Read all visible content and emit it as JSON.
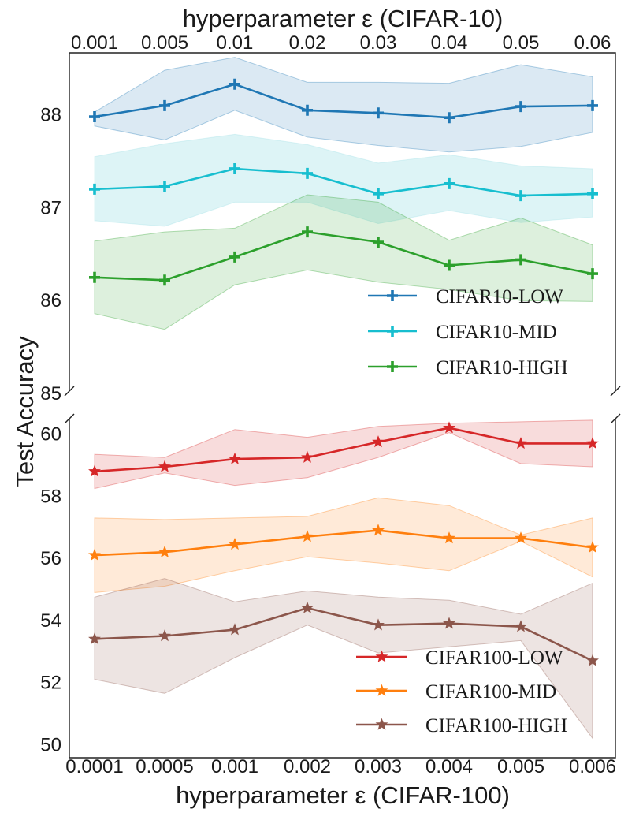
{
  "chart_data": {
    "type": "line",
    "ylabel": "Test Accuracy",
    "panels": [
      {
        "id": "cifar10",
        "title": "hyperparameter ε (CIFAR-10)",
        "x_tick_labels": [
          "0.001",
          "0.005",
          "0.01",
          "0.02",
          "0.03",
          "0.04",
          "0.05",
          "0.06"
        ],
        "ylim": [
          85,
          88.6
        ],
        "y_ticks": [
          85,
          86,
          87,
          88
        ],
        "marker": "plus",
        "legend_position": "lower-right",
        "series": [
          {
            "name": "CIFAR10-LOW",
            "color": "#1f77b4",
            "values": [
              87.98,
              88.1,
              88.33,
              88.05,
              88.02,
              87.97,
              88.09,
              88.1
            ],
            "upper": [
              88.03,
              88.48,
              88.62,
              88.35,
              88.35,
              88.34,
              88.54,
              88.41
            ],
            "lower": [
              87.88,
              87.73,
              88.05,
              87.76,
              87.67,
              87.6,
              87.66,
              87.81
            ]
          },
          {
            "name": "CIFAR10-MID",
            "color": "#17becf",
            "values": [
              87.2,
              87.23,
              87.42,
              87.37,
              87.15,
              87.26,
              87.13,
              87.15
            ],
            "upper": [
              87.55,
              87.69,
              87.79,
              87.68,
              87.48,
              87.57,
              87.45,
              87.42
            ],
            "lower": [
              86.86,
              86.8,
              87.06,
              87.06,
              86.83,
              86.97,
              86.84,
              86.9
            ],
            "band_color": "#9edfe6"
          },
          {
            "name": "CIFAR10-HIGH",
            "color": "#2ca02c",
            "values": [
              86.25,
              86.22,
              86.47,
              86.74,
              86.63,
              86.38,
              86.44,
              86.29
            ],
            "upper": [
              86.64,
              86.74,
              86.78,
              87.14,
              87.06,
              86.65,
              86.89,
              86.6
            ],
            "lower": [
              85.86,
              85.69,
              86.17,
              86.33,
              86.2,
              86.12,
              86.0,
              85.99
            ]
          }
        ]
      },
      {
        "id": "cifar100",
        "xlabel": "hyperparameter ε (CIFAR-100)",
        "x_tick_labels": [
          "0.0001",
          "0.0005",
          "0.001",
          "0.002",
          "0.003",
          "0.004",
          "0.005",
          "0.006"
        ],
        "ylim": [
          49.6,
          60.6
        ],
        "y_ticks": [
          50,
          52,
          54,
          56,
          58,
          60
        ],
        "marker": "star",
        "legend_position": "lower-right",
        "series": [
          {
            "name": "CIFAR100-LOW",
            "color": "#d62728",
            "values": [
              58.8,
              58.95,
              59.2,
              59.25,
              59.75,
              60.2,
              59.7,
              59.7
            ],
            "upper": [
              59.35,
              59.25,
              60.15,
              59.9,
              60.25,
              60.35,
              60.4,
              60.45
            ],
            "lower": [
              58.25,
              58.75,
              58.35,
              58.6,
              59.25,
              60.05,
              59.05,
              58.95
            ]
          },
          {
            "name": "CIFAR100-MID",
            "color": "#ff7f0e",
            "values": [
              56.1,
              56.2,
              56.45,
              56.7,
              56.9,
              56.65,
              56.65,
              56.35
            ],
            "upper": [
              57.3,
              57.25,
              57.3,
              57.35,
              57.95,
              57.7,
              56.75,
              57.3
            ],
            "lower": [
              54.9,
              55.1,
              55.6,
              56.05,
              55.85,
              55.6,
              56.55,
              55.4
            ]
          },
          {
            "name": "CIFAR100-HIGH",
            "color": "#8c564b",
            "values": [
              53.4,
              53.5,
              53.7,
              54.4,
              53.85,
              53.9,
              53.8,
              52.7
            ],
            "upper": [
              54.75,
              55.35,
              54.6,
              54.95,
              54.75,
              54.65,
              54.2,
              55.2
            ],
            "lower": [
              52.1,
              51.65,
              52.8,
              53.85,
              52.95,
              53.15,
              53.35,
              50.2
            ]
          }
        ]
      }
    ]
  }
}
